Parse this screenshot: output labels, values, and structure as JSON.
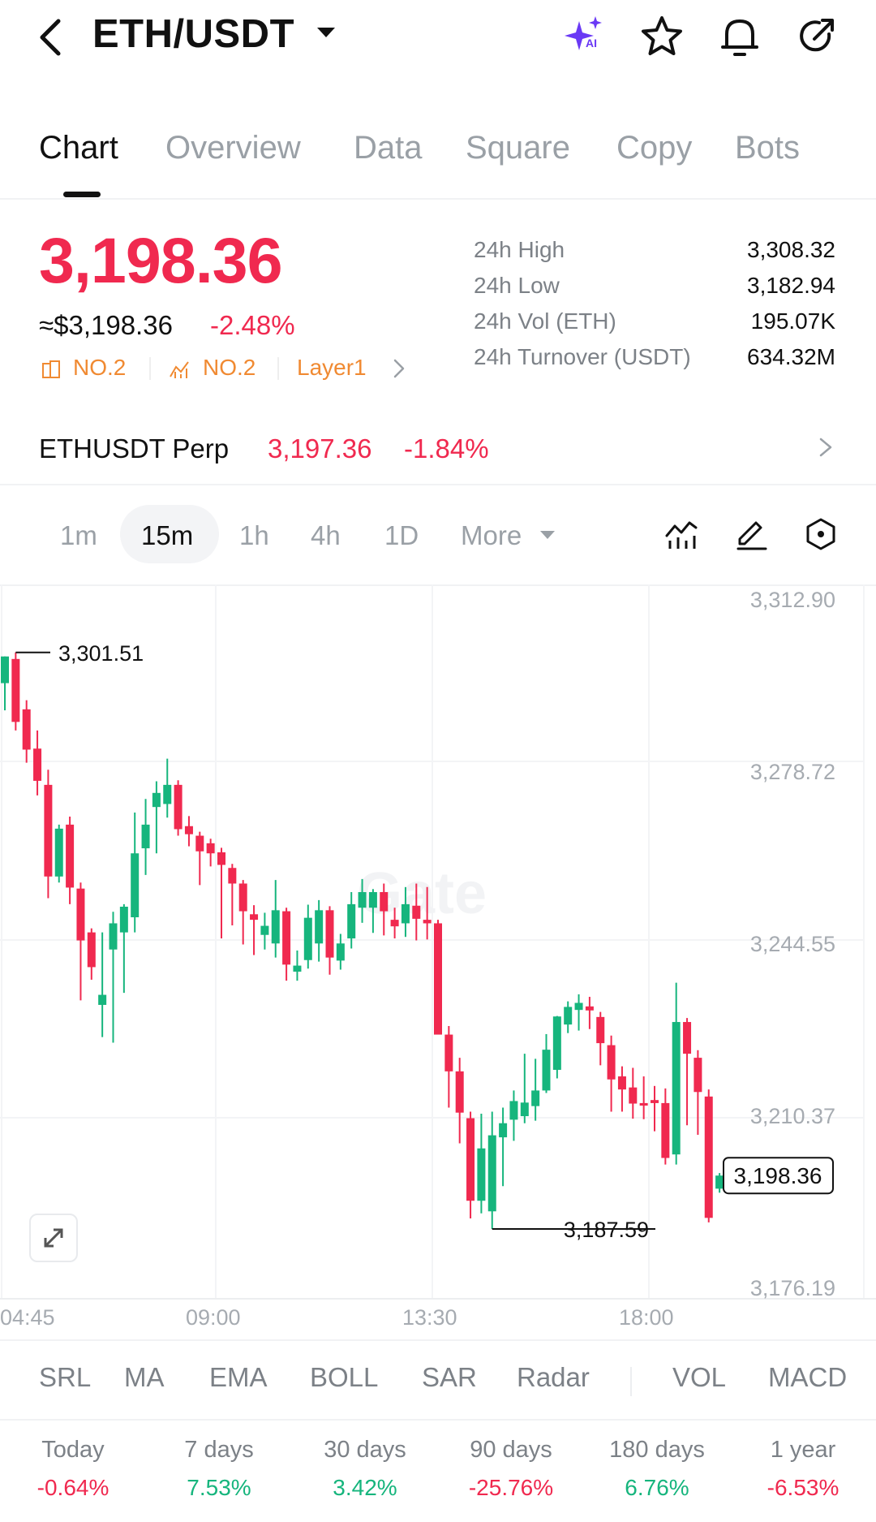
{
  "header": {
    "title": "ETH/USDT",
    "ai_badge": "AI"
  },
  "tabs": [
    "Chart",
    "Overview",
    "Data",
    "Square",
    "Copy",
    "Bots"
  ],
  "price": {
    "last": "3,198.36",
    "usd": "≈$3,198.36",
    "change": "-2.48%"
  },
  "tags": [
    "NO.2",
    "NO.2",
    "Layer1"
  ],
  "stats": [
    {
      "label": "24h  High",
      "value": "3,308.32"
    },
    {
      "label": "24h  Low",
      "value": "3,182.94"
    },
    {
      "label": "24h  Vol (ETH)",
      "value": "195.07K"
    },
    {
      "label": "24h  Turnover (USDT)",
      "value": "634.32M"
    }
  ],
  "perp": {
    "name": "ETHUSDT Perp",
    "price": "3,197.36",
    "change": "-1.84%"
  },
  "intervals": [
    "1m",
    "15m",
    "1h",
    "4h",
    "1D",
    "More"
  ],
  "active_interval": "15m",
  "watermark": "Gate",
  "chart_data": {
    "type": "candlestick",
    "y_ticks": [
      "3,312.90",
      "3,278.72",
      "3,244.55",
      "3,210.37",
      "3,176.19"
    ],
    "x_ticks": [
      "04:45",
      "09:00",
      "13:30",
      "18:00"
    ],
    "high_marker": "3,301.51",
    "low_marker": "3,187.59",
    "last_price_label": "3,198.36",
    "ylim": [
      3176.19,
      3312.9
    ],
    "candles": [
      [
        3296.2,
        3301.5,
        3290.8,
        3301.5
      ],
      [
        3301.0,
        3302.3,
        3286.8,
        3288.5
      ],
      [
        3291.0,
        3292.8,
        3280.4,
        3283.0
      ],
      [
        3283.2,
        3286.8,
        3273.9,
        3276.8
      ],
      [
        3276.0,
        3279.0,
        3253.5,
        3257.8
      ],
      [
        3257.8,
        3268.1,
        3256.6,
        3267.3
      ],
      [
        3268.1,
        3269.7,
        3252.3,
        3255.6
      ],
      [
        3255.4,
        3256.6,
        3233.2,
        3245.1
      ],
      [
        3246.7,
        3247.5,
        3237.3,
        3239.8
      ],
      [
        3232.3,
        3246.7,
        3225.9,
        3234.3
      ],
      [
        3243.3,
        3250.8,
        3224.8,
        3248.5
      ],
      [
        3246.7,
        3252.3,
        3234.7,
        3251.8
      ],
      [
        3249.7,
        3270.5,
        3246.7,
        3262.4
      ],
      [
        3263.4,
        3273.2,
        3258.1,
        3268.1
      ],
      [
        3271.6,
        3276.7,
        3262.4,
        3274.4
      ],
      [
        3272.2,
        3281.2,
        3269.5,
        3276.0
      ],
      [
        3276.0,
        3276.9,
        3265.9,
        3267.2
      ],
      [
        3267.8,
        3269.8,
        3263.8,
        3266.2
      ],
      [
        3265.9,
        3266.7,
        3256.1,
        3262.8
      ],
      [
        3264.4,
        3265.3,
        3259.8,
        3262.4
      ],
      [
        3262.6,
        3263.5,
        3245.5,
        3260.1
      ],
      [
        3259.5,
        3260.3,
        3248.1,
        3256.4
      ],
      [
        3256.4,
        3257.1,
        3244.3,
        3250.9
      ],
      [
        3250.3,
        3252.1,
        3242.2,
        3249.2
      ],
      [
        3246.2,
        3250.6,
        3243.3,
        3248.0
      ],
      [
        3244.5,
        3257.1,
        3241.7,
        3251.1
      ],
      [
        3250.9,
        3251.6,
        3237.1,
        3240.3
      ],
      [
        3238.9,
        3243.1,
        3237.1,
        3240.1
      ],
      [
        3241.2,
        3252.2,
        3239.5,
        3249.6
      ],
      [
        3244.5,
        3253.1,
        3240.9,
        3251.1
      ],
      [
        3251.1,
        3251.9,
        3238.3,
        3241.7
      ],
      [
        3241.1,
        3246.4,
        3239.3,
        3244.5
      ],
      [
        3245.5,
        3254.7,
        3243.5,
        3252.3
      ],
      [
        3251.6,
        3257.3,
        3248.6,
        3254.7
      ],
      [
        3251.6,
        3255.3,
        3246.6,
        3254.7
      ],
      [
        3254.7,
        3256.4,
        3246.1,
        3250.9
      ],
      [
        3249.2,
        3251.6,
        3245.5,
        3247.9
      ],
      [
        3248.5,
        3255.7,
        3245.8,
        3252.3
      ],
      [
        3252.0,
        3256.4,
        3245.1,
        3249.4
      ],
      [
        3249.2,
        3255.7,
        3245.3,
        3248.5
      ],
      [
        3248.5,
        3249.2,
        3226.4,
        3226.4
      ],
      [
        3226.4,
        3228.1,
        3211.9,
        3219.1
      ],
      [
        3219.1,
        3221.8,
        3204.8,
        3210.9
      ],
      [
        3209.8,
        3211.1,
        3189.9,
        3193.4
      ],
      [
        3193.4,
        3210.7,
        3190.9,
        3203.8
      ],
      [
        3191.3,
        3211.1,
        3187.8,
        3206.4
      ],
      [
        3206.0,
        3211.9,
        3196.3,
        3208.8
      ],
      [
        3209.5,
        3215.3,
        3205.3,
        3213.2
      ],
      [
        3210.2,
        3222.6,
        3208.8,
        3212.9
      ],
      [
        3212.2,
        3221.6,
        3209.3,
        3215.3
      ],
      [
        3215.3,
        3226.5,
        3214.8,
        3223.4
      ],
      [
        3219.4,
        3230.1,
        3217.7,
        3230.0
      ],
      [
        3228.4,
        3233.0,
        3226.7,
        3231.9
      ],
      [
        3231.3,
        3234.4,
        3227.2,
        3232.7
      ],
      [
        3232.0,
        3233.9,
        3227.5,
        3231.2
      ],
      [
        3229.9,
        3230.9,
        3220.3,
        3224.7
      ],
      [
        3224.3,
        3226.2,
        3211.1,
        3217.5
      ],
      [
        3218.1,
        3220.1,
        3211.1,
        3215.5
      ],
      [
        3215.9,
        3219.8,
        3209.7,
        3212.7
      ],
      [
        3212.8,
        3218.1,
        3209.6,
        3212.3
      ],
      [
        3213.4,
        3216.2,
        3207.2,
        3212.8
      ],
      [
        3212.8,
        3215.7,
        3200.6,
        3201.9
      ],
      [
        3202.6,
        3236.7,
        3200.6,
        3228.9
      ],
      [
        3228.9,
        3229.7,
        3208.4,
        3222.6
      ],
      [
        3221.8,
        3223.3,
        3206.5,
        3215.0
      ],
      [
        3214.1,
        3215.5,
        3189.1,
        3190.0
      ],
      [
        3195.8,
        3198.9,
        3195.0,
        3198.4
      ]
    ]
  },
  "indicators": [
    "SRL",
    "MA",
    "EMA",
    "BOLL",
    "SAR",
    "Radar",
    "VOL",
    "MACD"
  ],
  "performance": [
    {
      "label": "Today",
      "value": "-0.64%",
      "dir": "neg"
    },
    {
      "label": "7 days",
      "value": "7.53%",
      "dir": "pos"
    },
    {
      "label": "30 days",
      "value": "3.42%",
      "dir": "pos"
    },
    {
      "label": "90 days",
      "value": "-25.76%",
      "dir": "neg"
    },
    {
      "label": "180 days",
      "value": "6.76%",
      "dir": "pos"
    },
    {
      "label": "1 year",
      "value": "-6.53%",
      "dir": "neg"
    }
  ],
  "colors": {
    "up": "#16b57d",
    "down": "#f0294f",
    "accent_orange": "#f08a32",
    "ai_purple": "#6a39f5"
  }
}
